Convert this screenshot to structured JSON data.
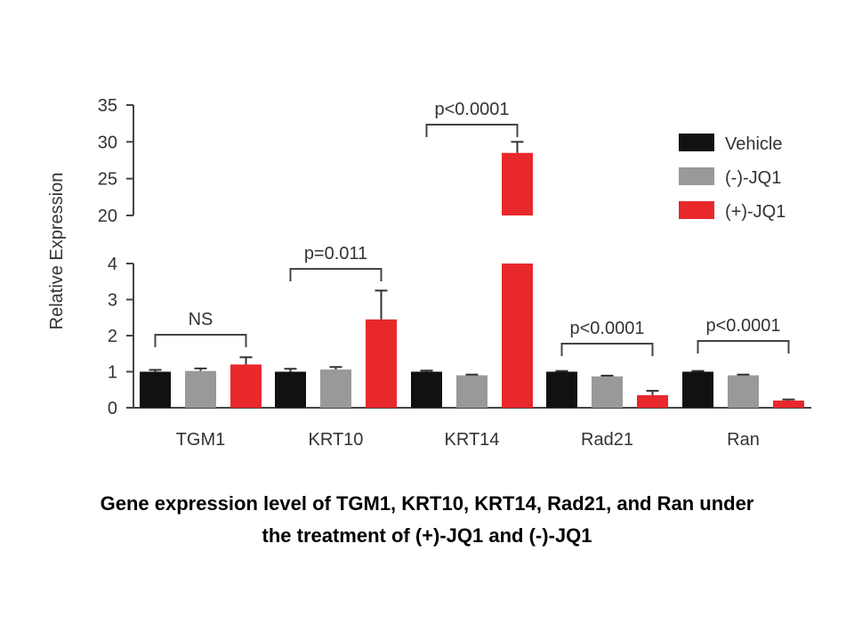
{
  "chart_data": {
    "type": "bar",
    "ylabel": "Relative Expression",
    "categories": [
      "TGM1",
      "KRT10",
      "KRT14",
      "Rad21",
      "Ran"
    ],
    "series": [
      {
        "name": "Vehicle",
        "color": "#111111",
        "values": [
          1.0,
          1.0,
          1.0,
          1.0,
          1.0
        ],
        "errors": [
          0.05,
          0.08,
          0.03,
          0.02,
          0.02
        ]
      },
      {
        "name": "(-)-JQ1",
        "color": "#999999",
        "values": [
          1.02,
          1.06,
          0.9,
          0.87,
          0.9
        ],
        "errors": [
          0.07,
          0.07,
          0.02,
          0.02,
          0.02
        ]
      },
      {
        "name": "(+)-JQ1",
        "color": "#e8282b",
        "values": [
          1.2,
          2.45,
          28.5,
          0.35,
          0.2
        ],
        "errors": [
          0.2,
          0.8,
          1.5,
          0.12,
          0.03
        ]
      }
    ],
    "y_axis_segments": [
      {
        "range": [
          0,
          4
        ],
        "ticks": [
          "0",
          "1",
          "2",
          "3",
          "4"
        ]
      },
      {
        "range": [
          20,
          35
        ],
        "ticks": [
          "20",
          "25",
          "30",
          "35"
        ]
      }
    ],
    "annotations": [
      {
        "category": "TGM1",
        "text": "NS"
      },
      {
        "category": "KRT10",
        "text": "p=0.011"
      },
      {
        "category": "KRT14",
        "text": "p<0.0001"
      },
      {
        "category": "Rad21",
        "text": "p<0.0001"
      },
      {
        "category": "Ran",
        "text": "p<0.0001"
      }
    ],
    "legend_position": "top-right"
  },
  "caption": {
    "line1": "Gene expression level of TGM1, KRT10, KRT14, Rad21, and Ran under",
    "line2": "the treatment of (+)-JQ1 and (-)-JQ1"
  }
}
